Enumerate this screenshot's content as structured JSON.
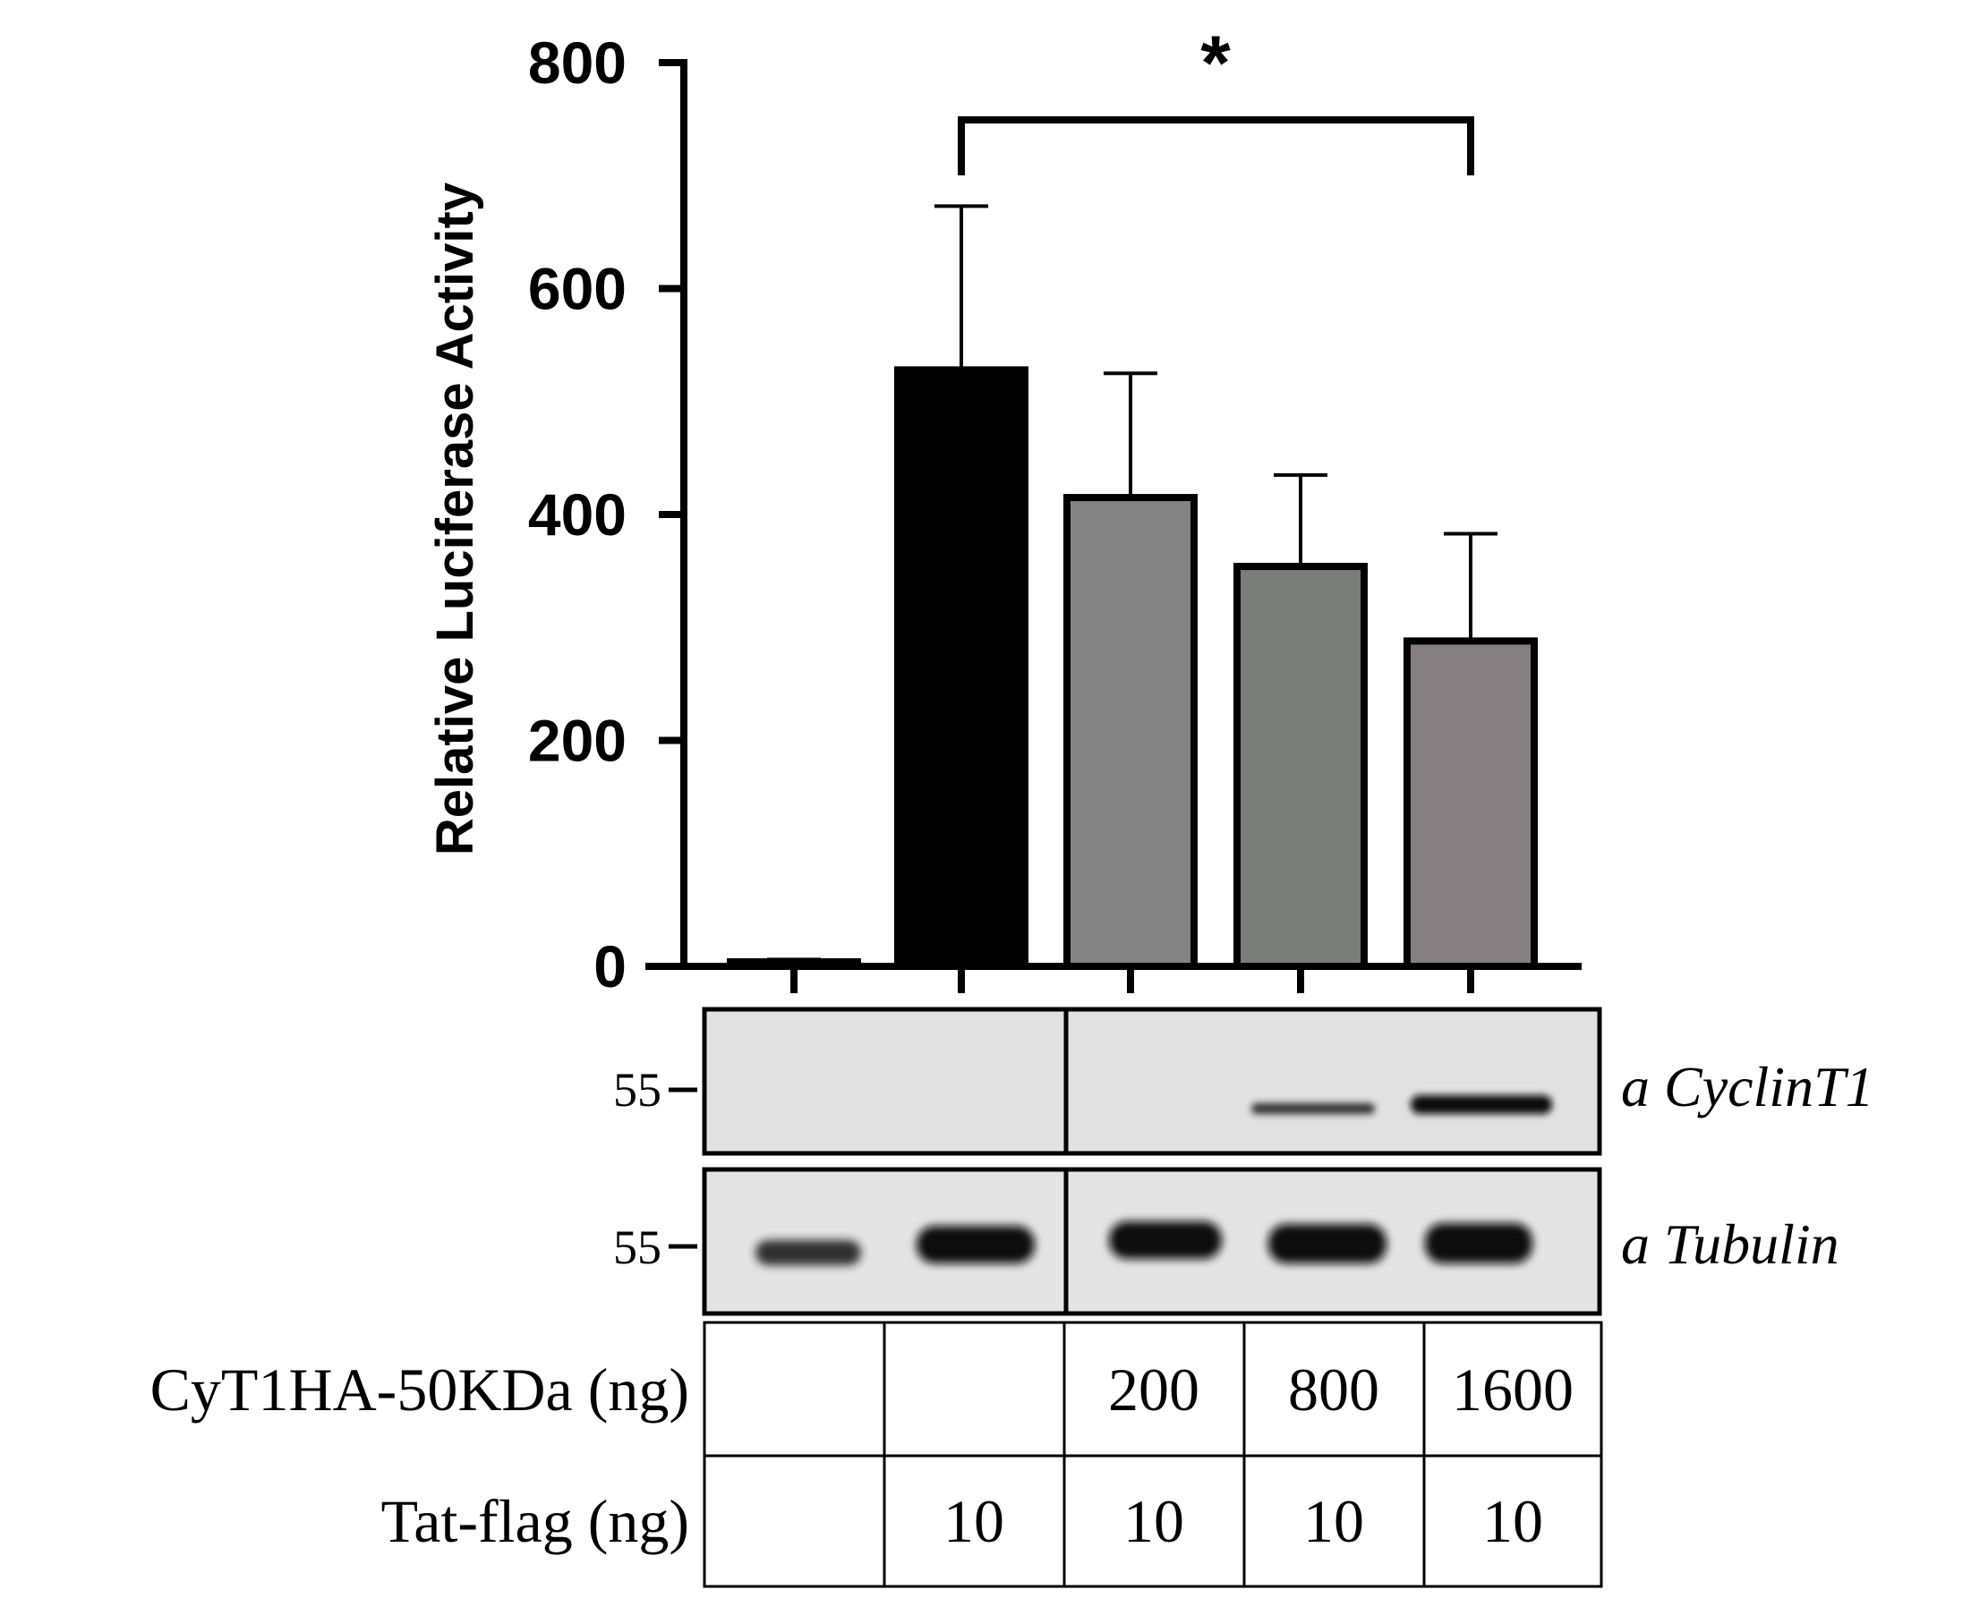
{
  "chart_data": {
    "type": "bar",
    "ylabel": "Relative Luciferase Activity",
    "ylim": [
      0,
      800
    ],
    "yticks": [
      0,
      200,
      400,
      600,
      800
    ],
    "ytick_labels": [
      "0",
      "200",
      "400",
      "600",
      "800"
    ],
    "categories": [
      "",
      "",
      "",
      "",
      ""
    ],
    "values": [
      4,
      528,
      415,
      354,
      288
    ],
    "errors": [
      2,
      145,
      110,
      81,
      95
    ],
    "bar_colors": [
      "#000000",
      "#000000",
      "#838383",
      "#7a7e79",
      "#857f82"
    ],
    "significance": {
      "between": [
        1,
        4
      ],
      "label": "*"
    }
  },
  "blot": {
    "rows": [
      {
        "marker": "55",
        "antibody": "a CyclinT1"
      },
      {
        "marker": "55",
        "antibody": "a Tubulin"
      }
    ]
  },
  "table": {
    "rows": [
      {
        "label": "CyT1HA-50KDa (ng)",
        "cells": [
          "",
          "",
          "200",
          "800",
          "1600"
        ]
      },
      {
        "label": "Tat-flag (ng)",
        "cells": [
          "",
          "10",
          "10",
          "10",
          "10"
        ]
      }
    ]
  }
}
